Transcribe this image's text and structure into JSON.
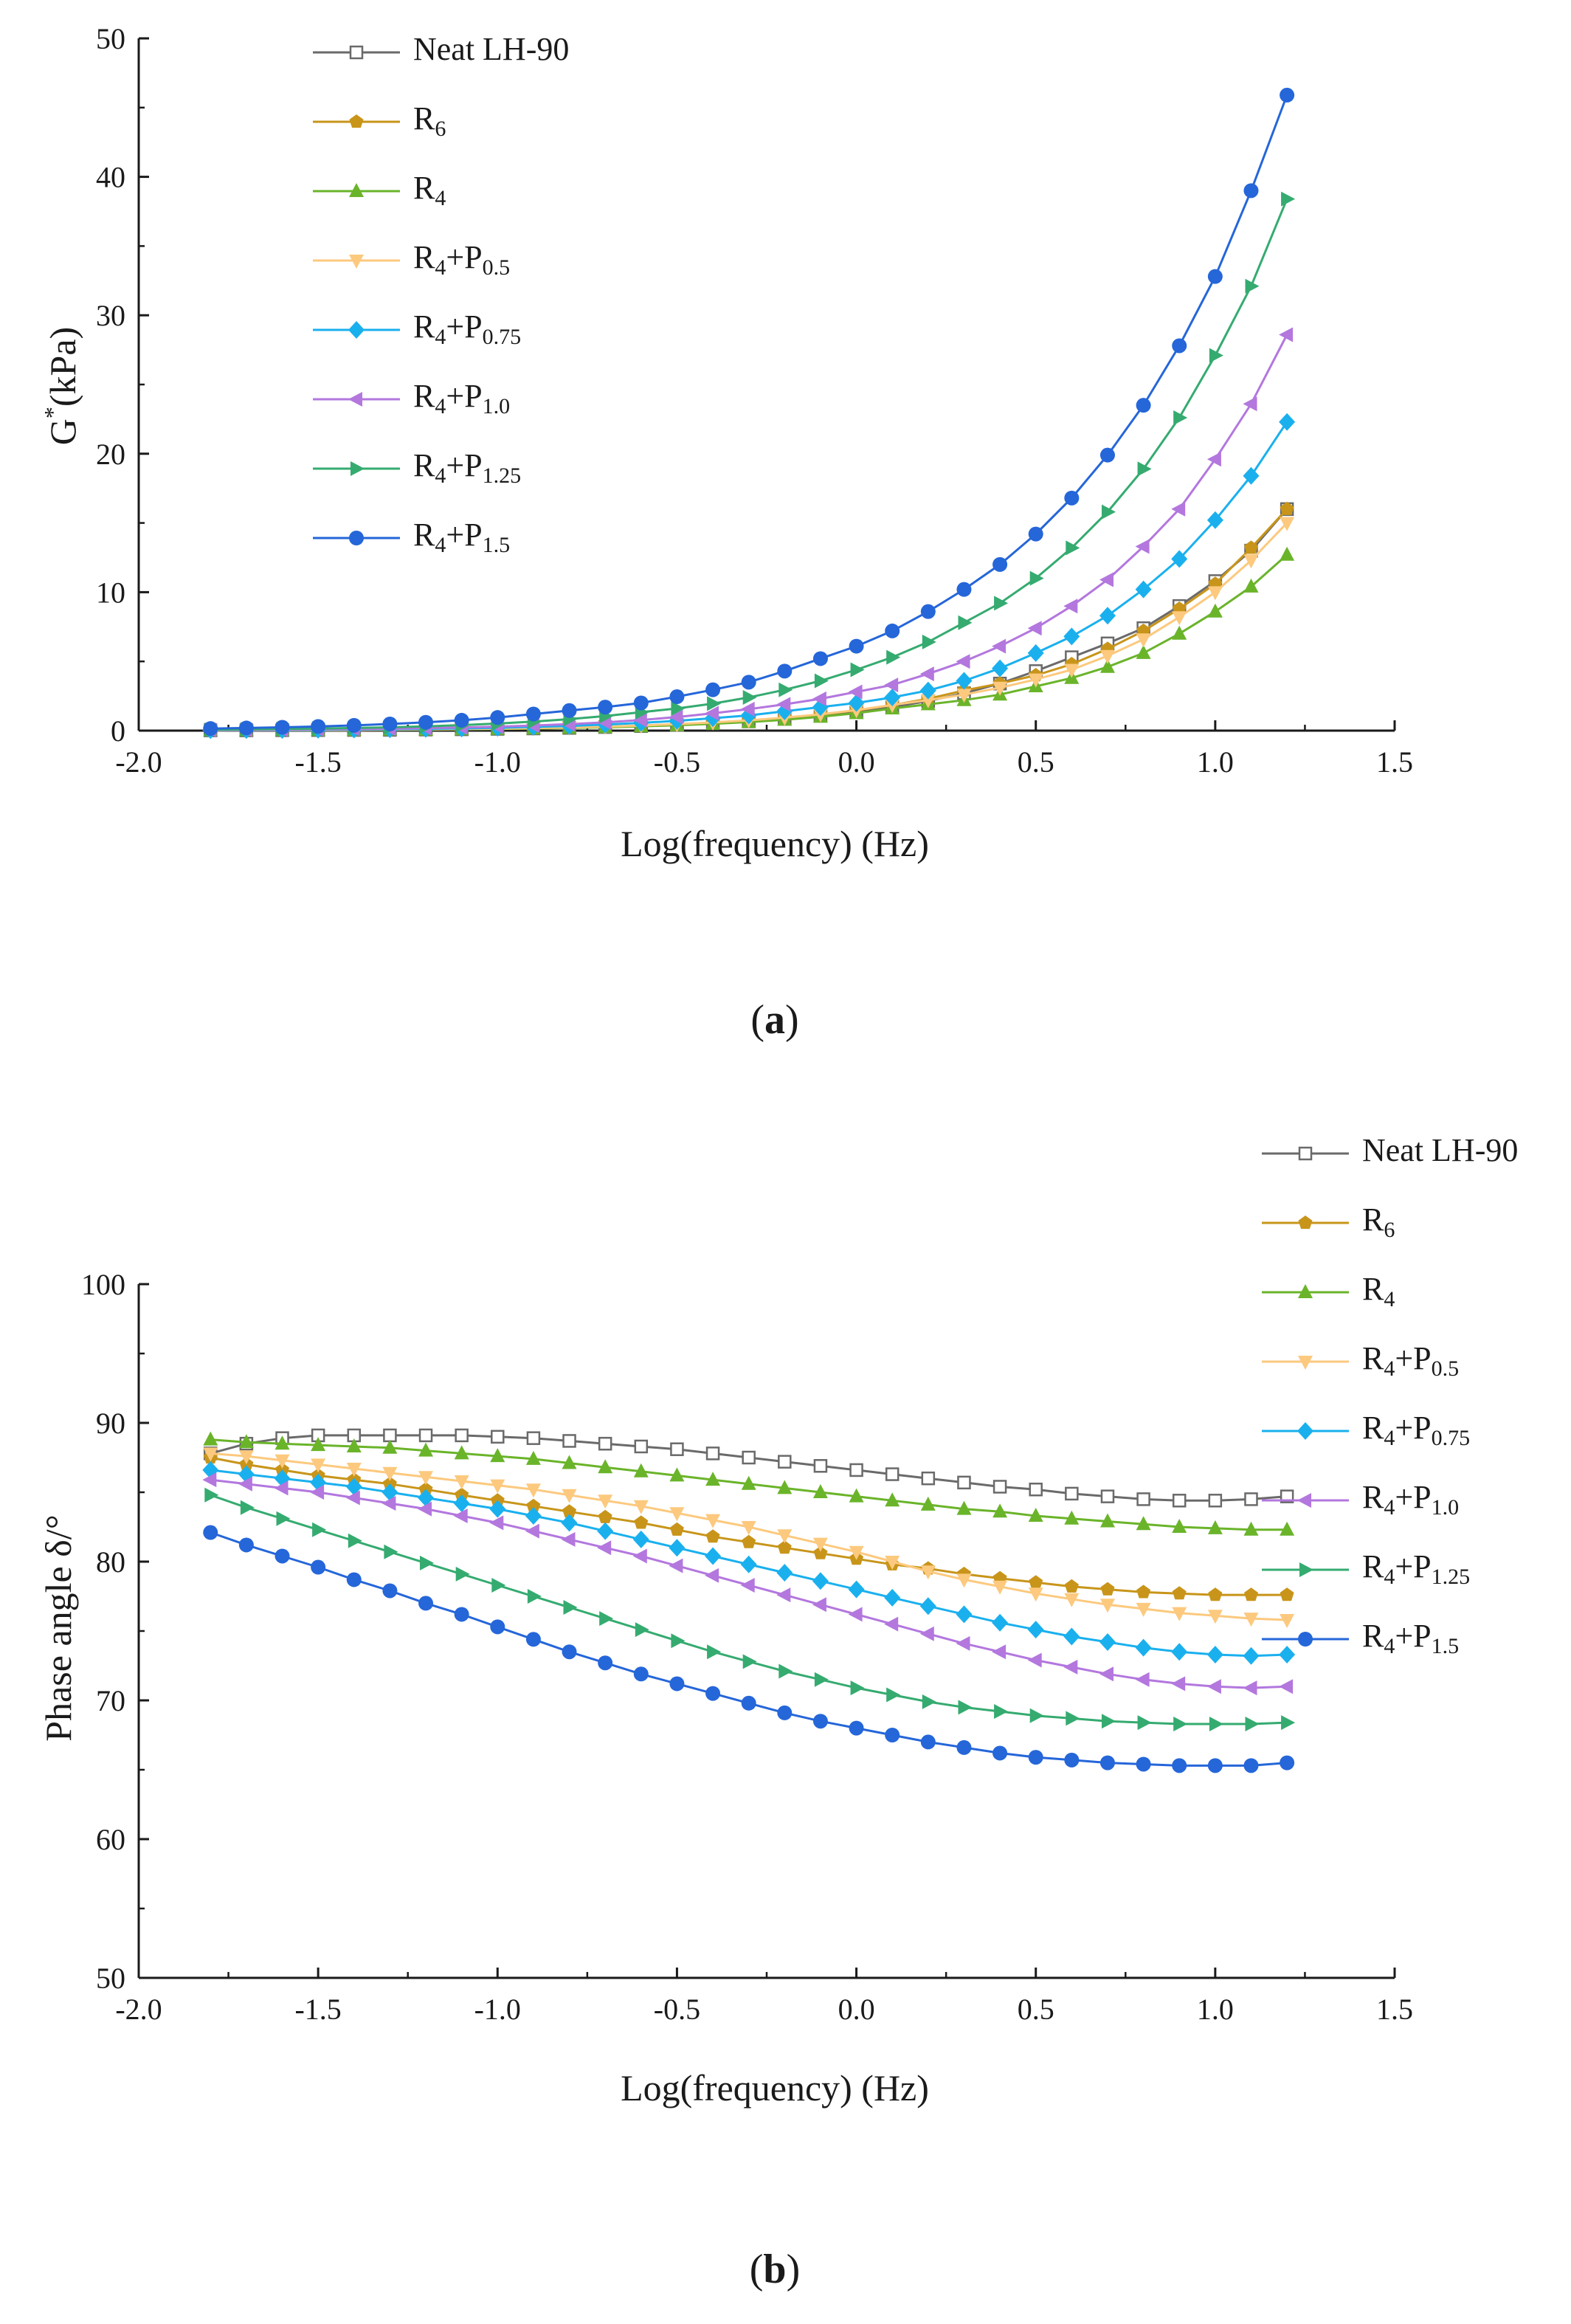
{
  "chart_data": [
    {
      "panel": "a",
      "type": "line",
      "caption": {
        "open": "(",
        "letter": "a",
        "close": ")"
      },
      "xlabel": "Log(frequency) (Hz)",
      "ylabel": {
        "main": "G",
        "sup": "*",
        "rest": "(kPa)"
      },
      "xlim": [
        -2.0,
        1.5
      ],
      "ylim": [
        0,
        50
      ],
      "xticks": [
        "-2.0",
        "-1.5",
        "-1.0",
        "-0.5",
        "0.0",
        "0.5",
        "1.0",
        "1.5"
      ],
      "yticks": [
        "0",
        "10",
        "20",
        "30",
        "40",
        "50"
      ],
      "grid": false,
      "legend_position": "top-left",
      "x": [
        -1.8,
        -1.7,
        -1.6,
        -1.5,
        -1.4,
        -1.3,
        -1.2,
        -1.1,
        -1.0,
        -0.9,
        -0.8,
        -0.7,
        -0.6,
        -0.5,
        -0.4,
        -0.3,
        -0.2,
        -0.1,
        0.0,
        0.1,
        0.2,
        0.3,
        0.4,
        0.5,
        0.6,
        0.7,
        0.8,
        0.9,
        1.0,
        1.1,
        1.2
      ],
      "series": [
        {
          "name": "Neat LH-90",
          "base": "Neat LH-90",
          "sub": "",
          "values": [
            0.02,
            0.02,
            0.03,
            0.04,
            0.05,
            0.06,
            0.08,
            0.1,
            0.13,
            0.16,
            0.2,
            0.26,
            0.33,
            0.42,
            0.53,
            0.67,
            0.85,
            1.07,
            1.35,
            1.7,
            2.14,
            2.7,
            3.4,
            4.3,
            5.3,
            6.3,
            7.4,
            9.0,
            10.8,
            13.0,
            16.0
          ]
        },
        {
          "name": "R6",
          "base": "R",
          "sub": "6",
          "values": [
            0.02,
            0.03,
            0.03,
            0.04,
            0.05,
            0.07,
            0.09,
            0.11,
            0.14,
            0.18,
            0.22,
            0.28,
            0.36,
            0.46,
            0.58,
            0.73,
            0.92,
            1.16,
            1.46,
            1.84,
            2.3,
            2.9,
            3.4,
            4.0,
            4.8,
            5.9,
            7.2,
            8.8,
            10.6,
            13.2,
            16.0
          ]
        },
        {
          "name": "R4",
          "base": "R",
          "sub": "4",
          "values": [
            0.02,
            0.02,
            0.03,
            0.04,
            0.05,
            0.06,
            0.07,
            0.09,
            0.12,
            0.15,
            0.19,
            0.24,
            0.31,
            0.39,
            0.49,
            0.62,
            0.79,
            1.0,
            1.26,
            1.6,
            1.9,
            2.2,
            2.6,
            3.2,
            3.8,
            4.6,
            5.6,
            7.0,
            8.6,
            10.4,
            12.7
          ]
        },
        {
          "name": "R4+P0.5",
          "base": "R",
          "sub": "4",
          "plus": "+P",
          "sub2": "0.5",
          "values": [
            0.02,
            0.03,
            0.03,
            0.04,
            0.05,
            0.07,
            0.09,
            0.11,
            0.14,
            0.18,
            0.23,
            0.29,
            0.37,
            0.47,
            0.59,
            0.74,
            0.94,
            1.18,
            1.48,
            1.86,
            2.2,
            2.6,
            3.1,
            3.7,
            4.4,
            5.4,
            6.6,
            8.2,
            10.0,
            12.3,
            15.0
          ]
        },
        {
          "name": "R4+P0.75",
          "base": "R",
          "sub": "4",
          "plus": "+P",
          "sub2": "0.75",
          "values": [
            0.03,
            0.04,
            0.05,
            0.06,
            0.08,
            0.1,
            0.13,
            0.16,
            0.21,
            0.27,
            0.34,
            0.44,
            0.56,
            0.71,
            0.9,
            1.1,
            1.4,
            1.7,
            2.0,
            2.4,
            2.9,
            3.6,
            4.5,
            5.6,
            6.8,
            8.3,
            10.2,
            12.4,
            15.2,
            18.4,
            22.3
          ]
        },
        {
          "name": "R4+P1.0",
          "base": "R",
          "sub": "4",
          "plus": "+P",
          "sub2": "1.0",
          "values": [
            0.04,
            0.05,
            0.07,
            0.09,
            0.11,
            0.14,
            0.18,
            0.23,
            0.29,
            0.37,
            0.47,
            0.6,
            0.77,
            0.98,
            1.25,
            1.55,
            1.9,
            2.3,
            2.8,
            3.3,
            4.1,
            5.0,
            6.1,
            7.4,
            9.0,
            10.9,
            13.3,
            16.0,
            19.6,
            23.6,
            28.6
          ]
        },
        {
          "name": "R4+P1.25",
          "base": "R",
          "sub": "4",
          "plus": "+P",
          "sub2": "1.25",
          "values": [
            0.07,
            0.09,
            0.12,
            0.15,
            0.19,
            0.24,
            0.31,
            0.4,
            0.51,
            0.65,
            0.83,
            1.05,
            1.33,
            1.6,
            1.95,
            2.4,
            2.95,
            3.6,
            4.4,
            5.3,
            6.4,
            7.8,
            9.2,
            11.0,
            13.2,
            15.8,
            18.9,
            22.6,
            27.1,
            32.1,
            38.4
          ]
        },
        {
          "name": "R4+P1.5",
          "base": "R",
          "sub": "4",
          "plus": "+P",
          "sub2": "1.5",
          "values": [
            0.15,
            0.19,
            0.24,
            0.3,
            0.38,
            0.48,
            0.6,
            0.75,
            0.95,
            1.2,
            1.45,
            1.7,
            2.0,
            2.45,
            2.95,
            3.5,
            4.3,
            5.2,
            6.1,
            7.2,
            8.6,
            10.2,
            12.0,
            14.2,
            16.8,
            19.9,
            23.5,
            27.8,
            32.8,
            39.0,
            45.9
          ]
        }
      ]
    },
    {
      "panel": "b",
      "type": "line",
      "caption": {
        "open": "(",
        "letter": "b",
        "close": ")"
      },
      "xlabel": "Log(frequency) (Hz)",
      "ylabel": "Phase angle δ/°",
      "xlim": [
        -2.0,
        1.5
      ],
      "ylim": [
        50,
        100
      ],
      "xticks": [
        "-2.0",
        "-1.5",
        "-1.0",
        "-0.5",
        "0.0",
        "0.5",
        "1.0",
        "1.5"
      ],
      "yticks": [
        "50",
        "60",
        "70",
        "80",
        "90",
        "100"
      ],
      "grid": false,
      "legend_position": "top-right",
      "x": [
        -1.8,
        -1.7,
        -1.6,
        -1.5,
        -1.4,
        -1.3,
        -1.2,
        -1.1,
        -1.0,
        -0.9,
        -0.8,
        -0.7,
        -0.6,
        -0.5,
        -0.4,
        -0.3,
        -0.2,
        -0.1,
        0.0,
        0.1,
        0.2,
        0.3,
        0.4,
        0.5,
        0.6,
        0.7,
        0.8,
        0.9,
        1.0,
        1.1,
        1.2
      ],
      "series": [
        {
          "name": "Neat LH-90",
          "base": "Neat LH-90",
          "sub": "",
          "values": [
            87.8,
            88.5,
            88.9,
            89.1,
            89.1,
            89.1,
            89.1,
            89.1,
            89.0,
            88.9,
            88.7,
            88.5,
            88.3,
            88.1,
            87.8,
            87.5,
            87.2,
            86.9,
            86.6,
            86.3,
            86.0,
            85.7,
            85.4,
            85.2,
            84.9,
            84.7,
            84.5,
            84.4,
            84.4,
            84.5,
            84.7
          ]
        },
        {
          "name": "R6",
          "base": "R",
          "sub": "6",
          "values": [
            87.5,
            87.0,
            86.6,
            86.2,
            85.9,
            85.6,
            85.2,
            84.8,
            84.4,
            84.0,
            83.6,
            83.2,
            82.8,
            82.3,
            81.8,
            81.4,
            81.0,
            80.6,
            80.2,
            79.8,
            79.5,
            79.1,
            78.8,
            78.5,
            78.2,
            78.0,
            77.8,
            77.7,
            77.6,
            77.6,
            77.6
          ]
        },
        {
          "name": "R4",
          "base": "R",
          "sub": "4",
          "values": [
            88.8,
            88.6,
            88.5,
            88.4,
            88.3,
            88.2,
            88.0,
            87.8,
            87.6,
            87.4,
            87.1,
            86.8,
            86.5,
            86.2,
            85.9,
            85.6,
            85.3,
            85.0,
            84.7,
            84.4,
            84.1,
            83.8,
            83.6,
            83.3,
            83.1,
            82.9,
            82.7,
            82.5,
            82.4,
            82.3,
            82.3
          ]
        },
        {
          "name": "R4+P0.5",
          "base": "R",
          "sub": "4",
          "plus": "+P",
          "sub2": "0.5",
          "values": [
            87.8,
            87.6,
            87.3,
            87.0,
            86.7,
            86.4,
            86.1,
            85.8,
            85.5,
            85.2,
            84.8,
            84.4,
            84.0,
            83.5,
            83.0,
            82.5,
            81.9,
            81.3,
            80.7,
            80.0,
            79.3,
            78.7,
            78.2,
            77.7,
            77.3,
            76.9,
            76.6,
            76.3,
            76.1,
            75.9,
            75.8
          ]
        },
        {
          "name": "R4+P0.75",
          "base": "R",
          "sub": "4",
          "plus": "+P",
          "sub2": "0.75",
          "values": [
            86.6,
            86.3,
            86.0,
            85.7,
            85.4,
            85.0,
            84.6,
            84.2,
            83.8,
            83.3,
            82.8,
            82.2,
            81.6,
            81.0,
            80.4,
            79.8,
            79.2,
            78.6,
            78.0,
            77.4,
            76.8,
            76.2,
            75.6,
            75.1,
            74.6,
            74.2,
            73.8,
            73.5,
            73.3,
            73.2,
            73.3
          ]
        },
        {
          "name": "R4+P1.0",
          "base": "R",
          "sub": "4",
          "plus": "+P",
          "sub2": "1.0",
          "values": [
            85.9,
            85.6,
            85.3,
            85.0,
            84.6,
            84.2,
            83.8,
            83.3,
            82.8,
            82.2,
            81.6,
            81.0,
            80.4,
            79.7,
            79.0,
            78.3,
            77.6,
            76.9,
            76.2,
            75.5,
            74.8,
            74.1,
            73.5,
            72.9,
            72.4,
            71.9,
            71.5,
            71.2,
            71.0,
            70.9,
            71.0
          ]
        },
        {
          "name": "R4+P1.25",
          "base": "R",
          "sub": "4",
          "plus": "+P",
          "sub2": "1.25",
          "values": [
            84.8,
            83.9,
            83.1,
            82.3,
            81.5,
            80.7,
            79.9,
            79.1,
            78.3,
            77.5,
            76.7,
            75.9,
            75.1,
            74.3,
            73.5,
            72.8,
            72.1,
            71.5,
            70.9,
            70.4,
            69.9,
            69.5,
            69.2,
            68.9,
            68.7,
            68.5,
            68.4,
            68.3,
            68.3,
            68.3,
            68.4
          ]
        },
        {
          "name": "R4+P1.5",
          "base": "R",
          "sub": "4",
          "plus": "+P",
          "sub2": "1.5",
          "values": [
            82.1,
            81.2,
            80.4,
            79.6,
            78.7,
            77.9,
            77.0,
            76.2,
            75.3,
            74.4,
            73.5,
            72.7,
            71.9,
            71.2,
            70.5,
            69.8,
            69.1,
            68.5,
            68.0,
            67.5,
            67.0,
            66.6,
            66.2,
            65.9,
            65.7,
            65.5,
            65.4,
            65.3,
            65.3,
            65.3,
            65.5
          ]
        }
      ]
    }
  ],
  "style": {
    "axis_color": "#1a1a1a",
    "series_colors": [
      "#6a6a6a",
      "#c8951a",
      "#6ab42a",
      "#fcc97e",
      "#1ab0ee",
      "#b377de",
      "#35ab70",
      "#2566d9"
    ],
    "series_markers": [
      "square-open",
      "pentagon",
      "triangle-up",
      "triangle-down",
      "diamond",
      "triangle-left",
      "triangle-right",
      "circle"
    ]
  }
}
